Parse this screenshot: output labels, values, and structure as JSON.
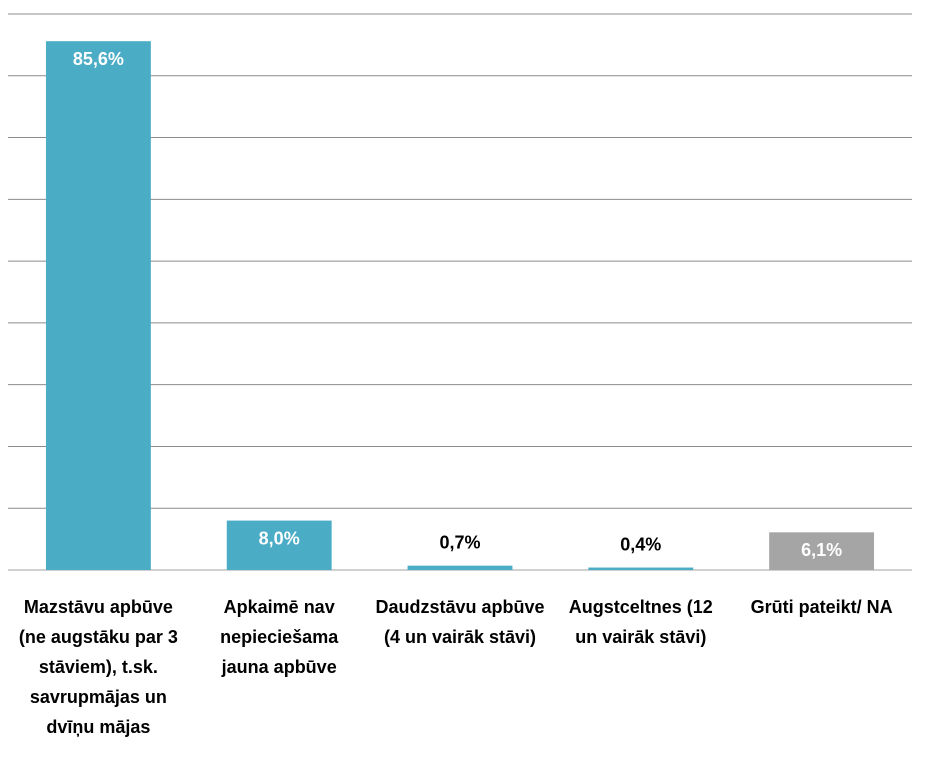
{
  "chart_data": {
    "type": "bar",
    "categories": [
      "Mazstāvu apbūve (ne augstāku par 3 stāviem), t.sk. savrupmājas un dvīņu mājas",
      "Apkaimē nav nepieciešama jauna apbūve",
      "Daudzstāvu apbūve (4 un vairāk stāvi)",
      "Augstceltnes (12 un vairāk stāvi)",
      "Grūti pateikt/ NA"
    ],
    "values": [
      85.6,
      8.0,
      0.7,
      0.4,
      6.1
    ],
    "value_labels": [
      "85,6%",
      "8,0%",
      "0,7%",
      "0,4%",
      "6,1%"
    ],
    "colors": [
      "#4bacc6",
      "#4bacc6",
      "#4bacc6",
      "#4bacc6",
      "#a5a5a5"
    ],
    "ylim": [
      0,
      90
    ],
    "yticks": [
      0,
      10,
      20,
      30,
      40,
      50,
      60,
      70,
      80,
      90
    ],
    "grid": true
  }
}
